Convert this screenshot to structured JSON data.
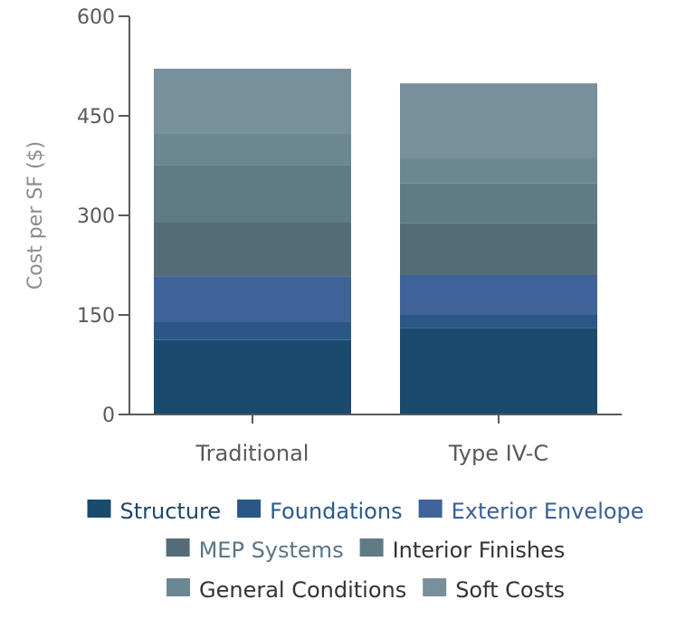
{
  "chart_data": {
    "type": "bar",
    "stacked": true,
    "categories": [
      "Traditional",
      "Type IV-C"
    ],
    "ylabel": "Cost per SF ($)",
    "ylim": [
      0,
      600
    ],
    "yticks": [
      0,
      150,
      300,
      450,
      600
    ],
    "grid": false,
    "legend_position": "bottom",
    "series": [
      {
        "name": "Structure",
        "values": [
          112,
          130
        ],
        "color": "#1a4a6e"
      },
      {
        "name": "Foundations",
        "values": [
          28,
          20
        ],
        "color": "#2a5785"
      },
      {
        "name": "Exterior Envelope",
        "values": [
          68,
          60
        ],
        "color": "#3e6399"
      },
      {
        "name": "MEP Systems",
        "values": [
          82,
          78
        ],
        "color": "#546c78"
      },
      {
        "name": "Interior Finishes",
        "values": [
          86,
          60
        ],
        "color": "#5f7b86"
      },
      {
        "name": "General Conditions",
        "values": [
          48,
          38
        ],
        "color": "#6b8892"
      },
      {
        "name": "Soft Costs",
        "values": [
          97,
          113
        ],
        "color": "#788f9c"
      }
    ]
  },
  "legend_text_colors": [
    "#1f4866",
    "#2a5a8a",
    "#3a5f96",
    "#5a7683",
    "#333333",
    "#333333",
    "#333333"
  ]
}
